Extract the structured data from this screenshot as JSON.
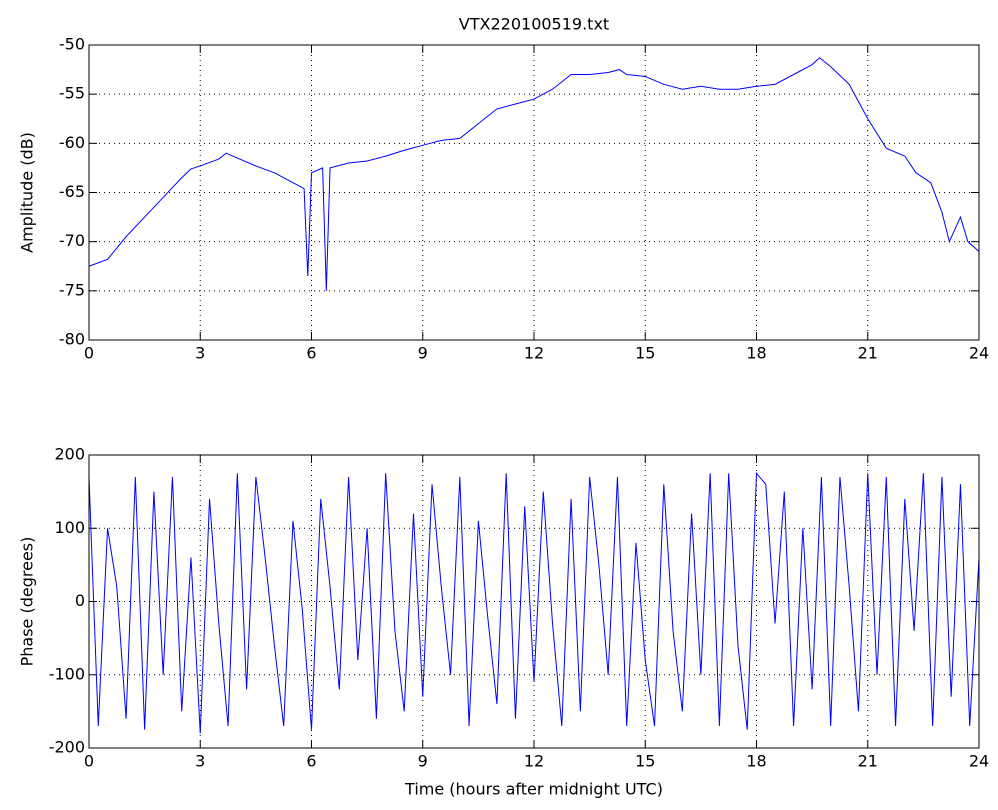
{
  "chart_data": [
    {
      "type": "line",
      "title": "VTX220100519.txt",
      "y_label": "Amplitude (dB)",
      "x": [
        0,
        0.5,
        1,
        1.5,
        2,
        2.25,
        2.5,
        2.75,
        3,
        3.5,
        3.7,
        4,
        4.5,
        5,
        5.5,
        5.8,
        5.9,
        6,
        6.3,
        6.4,
        6.5,
        7,
        7.5,
        8,
        8.5,
        9,
        9.5,
        10,
        10.5,
        11,
        11.5,
        12,
        12.5,
        13,
        13.5,
        14,
        14.3,
        14.5,
        15,
        15.5,
        16,
        16.5,
        17,
        17.5,
        18,
        18.5,
        19,
        19.5,
        19.7,
        20,
        20.5,
        21,
        21.5,
        22,
        22.3,
        22.7,
        23,
        23.2,
        23.5,
        23.7,
        24
      ],
      "series": [
        {
          "color": "#0000ff",
          "values": [
            -72.5,
            -71.8,
            -69.5,
            -67.5,
            -65.5,
            -64.5,
            -63.5,
            -62.6,
            -62.3,
            -61.6,
            -61,
            -61.5,
            -62.3,
            -63,
            -64,
            -64.6,
            -73.5,
            -63,
            -62.5,
            -75,
            -62.5,
            -62,
            -61.8,
            -61.3,
            -60.7,
            -60.2,
            -59.7,
            -59.5,
            -58,
            -56.5,
            -56,
            -55.5,
            -54.5,
            -53,
            -53,
            -52.8,
            -52.5,
            -53,
            -53.2,
            -54,
            -54.5,
            -54.2,
            -54.5,
            -54.5,
            -54.2,
            -54,
            -53,
            -52,
            -51.3,
            -52.2,
            -54,
            -57.5,
            -60.5,
            -61.3,
            -63,
            -64,
            -67,
            -70,
            -67.5,
            -70,
            -71
          ]
        }
      ],
      "xlim": [
        0,
        24
      ],
      "xticks": [
        0,
        3,
        6,
        9,
        12,
        15,
        18,
        21,
        24
      ],
      "ylim": [
        -80,
        -50
      ],
      "yticks": [
        -80,
        -75,
        -70,
        -65,
        -60,
        -55,
        -50
      ],
      "grid": true
    },
    {
      "type": "line",
      "x_label": "Time (hours after midnight UTC)",
      "y_label": "Phase (degrees)",
      "x": [
        0,
        0.25,
        0.5,
        0.75,
        1,
        1.25,
        1.5,
        1.75,
        2,
        2.25,
        2.5,
        2.75,
        3,
        3.25,
        3.5,
        3.75,
        4,
        4.25,
        4.5,
        4.75,
        5,
        5.25,
        5.5,
        5.75,
        6,
        6.25,
        6.5,
        6.75,
        7,
        7.25,
        7.5,
        7.75,
        8,
        8.25,
        8.5,
        8.75,
        9,
        9.25,
        9.5,
        9.75,
        10,
        10.25,
        10.5,
        10.75,
        11,
        11.25,
        11.5,
        11.75,
        12,
        12.25,
        12.5,
        12.75,
        13,
        13.25,
        13.5,
        13.75,
        14,
        14.25,
        14.5,
        14.75,
        15,
        15.25,
        15.5,
        15.75,
        16,
        16.25,
        16.5,
        16.75,
        17,
        17.25,
        17.5,
        17.75,
        18,
        18.25,
        18.5,
        18.75,
        19,
        19.25,
        19.5,
        19.75,
        20,
        20.25,
        20.5,
        20.75,
        21,
        21.25,
        21.5,
        21.75,
        22,
        22.25,
        22.5,
        22.75,
        23,
        23.25,
        23.5,
        23.75,
        24
      ],
      "series": [
        {
          "color": "#0000ff",
          "values": [
            170,
            -170,
            100,
            20,
            -160,
            170,
            -175,
            150,
            -100,
            170,
            -150,
            60,
            -180,
            140,
            -30,
            -170,
            175,
            -120,
            170,
            60,
            -60,
            -170,
            110,
            -10,
            -175,
            140,
            20,
            -120,
            170,
            -80,
            100,
            -160,
            175,
            -40,
            -150,
            120,
            -130,
            160,
            20,
            -100,
            170,
            -170,
            110,
            -20,
            -140,
            175,
            -160,
            130,
            -110,
            150,
            -30,
            -170,
            140,
            -150,
            170,
            50,
            -100,
            170,
            -170,
            80,
            -80,
            -170,
            160,
            -40,
            -150,
            120,
            -100,
            175,
            -170,
            175,
            -60,
            -175,
            175,
            160,
            -30,
            150,
            -170,
            100,
            -120,
            170,
            -170,
            170,
            20,
            -150,
            175,
            -100,
            170,
            -170,
            140,
            -40,
            175,
            -170,
            170,
            -130,
            160,
            -170,
            60
          ]
        }
      ],
      "xlim": [
        0,
        24
      ],
      "xticks": [
        0,
        3,
        6,
        9,
        12,
        15,
        18,
        21,
        24
      ],
      "ylim": [
        -200,
        200
      ],
      "yticks": [
        -200,
        -100,
        0,
        100,
        200
      ],
      "grid": true
    }
  ]
}
